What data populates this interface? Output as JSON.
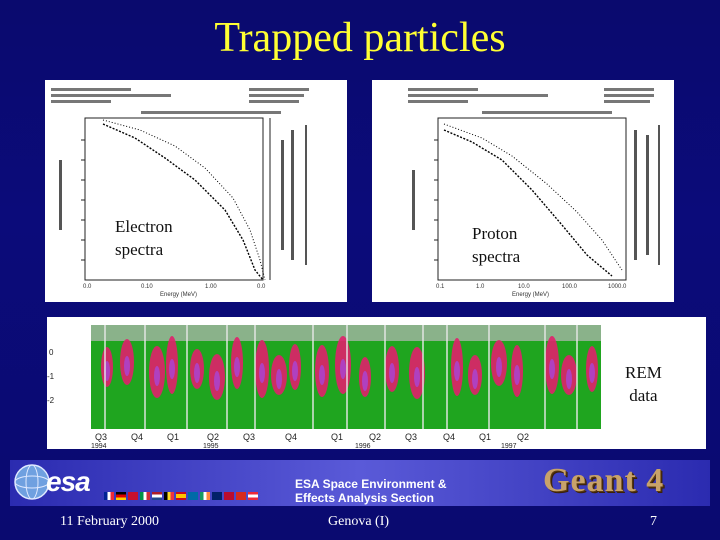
{
  "slide": {
    "title": "Trapped particles",
    "electron_label_line1": "Electron",
    "electron_label_line2": "spectra",
    "proton_label_line1": "Proton",
    "proton_label_line2": "spectra",
    "rem_label_line1": "REM",
    "rem_label_line2": "data",
    "section_line1": "ESA Space Environment &",
    "section_line2": "Effects Analysis Section",
    "logo_text": "esa",
    "geant": "Geant 4",
    "date": "11 February 2000",
    "place": "Genova (I)",
    "page": "7"
  },
  "electron_plot": {
    "x_ticks": [
      "0.0",
      "0.10",
      "1.00",
      "0.0"
    ],
    "x_label": "Energy (MeV)"
  },
  "proton_plot": {
    "x_ticks": [
      "0.1",
      "1.0",
      "10.0",
      "100.0",
      "1000.0"
    ],
    "x_label": "Energy (MeV)"
  },
  "rem_plot": {
    "x_ticks": [
      "Q3",
      "Q4",
      "Q1",
      "Q2",
      "Q3",
      "Q4",
      "Q1",
      "Q2",
      "Q3",
      "Q4",
      "Q1",
      "Q2"
    ],
    "years": [
      "1994",
      "1995",
      "1996",
      "1997"
    ],
    "y_ticks": [
      "0",
      "-1",
      "-2"
    ],
    "colors": {
      "background": "#1fa51f",
      "hot": "#e0206a",
      "core": "#b040c0"
    }
  },
  "colors": {
    "title": "#ffff33",
    "background": "#0a0a6e",
    "geant": "#c8a26a"
  }
}
